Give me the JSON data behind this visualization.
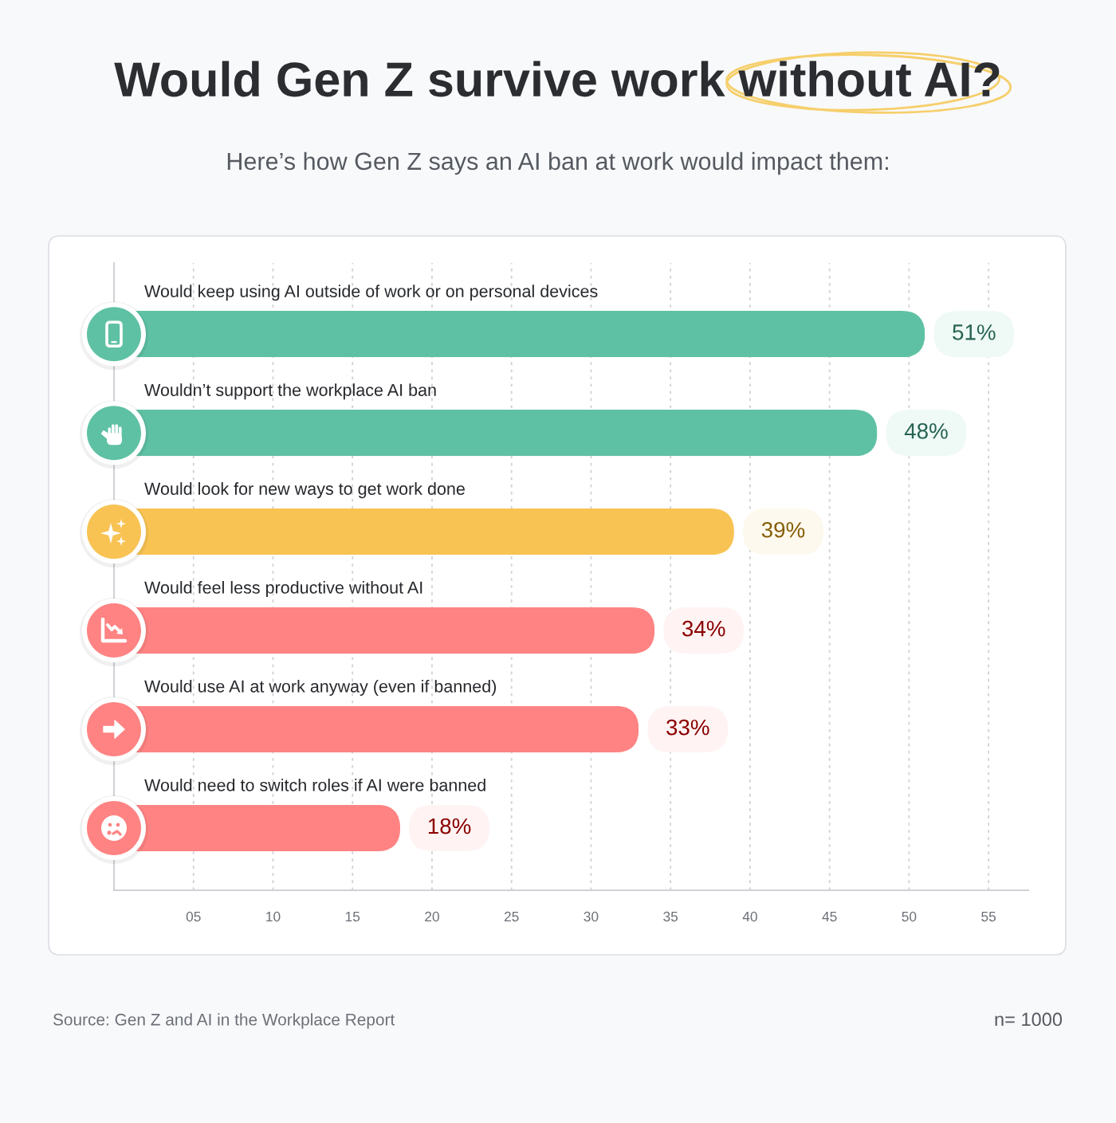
{
  "chart_data": {
    "type": "bar",
    "orientation": "horizontal",
    "title": "Would Gen Z survive work without AI?",
    "subtitle": "Here’s how Gen Z says an AI ban at work would impact them:",
    "categories": [
      "Would keep using AI outside of work or on personal devices",
      "Wouldn’t support the workplace AI ban",
      "Would look for new ways to get work done",
      "Would feel less productive without AI",
      "Would use AI at work anyway (even if banned)",
      "Would need to switch roles if AI were banned"
    ],
    "values": [
      51,
      48,
      39,
      34,
      33,
      18
    ],
    "colors": [
      "#5fc1a4",
      "#5fc1a4",
      "#f8c353",
      "#ff8383",
      "#ff8383",
      "#ff8383"
    ],
    "value_labels": [
      "51%",
      "48%",
      "39%",
      "34%",
      "33%",
      "18%"
    ],
    "xlim": [
      0,
      57.5
    ],
    "xticks": [
      {
        "value": 5,
        "label": "05"
      },
      10,
      15,
      20,
      25,
      30,
      35,
      40,
      45,
      50,
      55
    ],
    "grid": "x",
    "annotations": [
      "Source: Gen Z and AI in the Workplace Report",
      "n= 1000"
    ]
  }
}
